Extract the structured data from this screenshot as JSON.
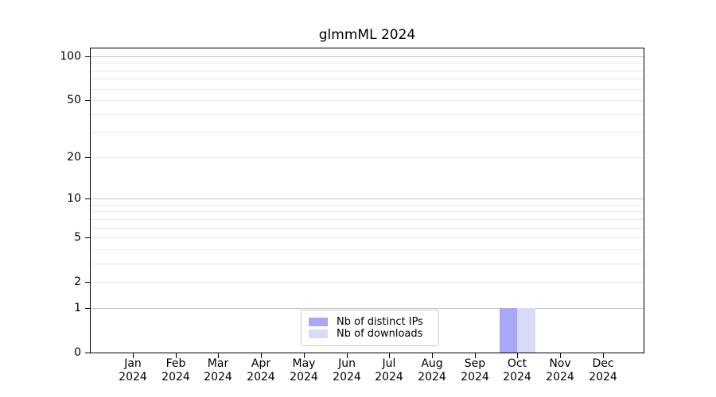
{
  "title": "glmmML 2024",
  "chart_data": {
    "type": "bar",
    "title": "glmmML 2024",
    "x_tick_labels": [
      [
        "Jan",
        "2024"
      ],
      [
        "Feb",
        "2024"
      ],
      [
        "Mar",
        "2024"
      ],
      [
        "Apr",
        "2024"
      ],
      [
        "May",
        "2024"
      ],
      [
        "Jun",
        "2024"
      ],
      [
        "Jul",
        "2024"
      ],
      [
        "Aug",
        "2024"
      ],
      [
        "Sep",
        "2024"
      ],
      [
        "Oct",
        "2024"
      ],
      [
        "Nov",
        "2024"
      ],
      [
        "Dec",
        "2024"
      ]
    ],
    "series": [
      {
        "name": "Nb of distinct IPs",
        "color": "#a8a8f5",
        "values": [
          0,
          0,
          0,
          0,
          0,
          0,
          0,
          0,
          0,
          1,
          0,
          0
        ]
      },
      {
        "name": "Nb of downloads",
        "color": "#d9d9f8",
        "values": [
          0,
          0,
          0,
          0,
          0,
          0,
          0,
          0,
          0,
          1,
          0,
          0
        ]
      }
    ],
    "y_scale": "log10(1+y)",
    "y_ticks": [
      0,
      1,
      2,
      5,
      10,
      20,
      50,
      100
    ],
    "y_major_gridlines": [
      1,
      10,
      100
    ],
    "y_minor_gridlines": [
      2,
      3,
      4,
      5,
      6,
      7,
      8,
      9,
      20,
      30,
      40,
      50,
      60,
      70,
      80,
      90
    ],
    "ylim": [
      0,
      113
    ],
    "grid": true,
    "legend_position": "lower center"
  },
  "legend": {
    "items": [
      {
        "label": "Nb of distinct IPs",
        "color": "#a8a8f5"
      },
      {
        "label": "Nb of downloads",
        "color": "#d9d9f8"
      }
    ]
  },
  "colors": {
    "background": "#ffffff",
    "axis": "#000000",
    "major_grid": "#c3c3c3",
    "minor_grid": "#e9e9e9",
    "legend_border": "#cccccc"
  }
}
